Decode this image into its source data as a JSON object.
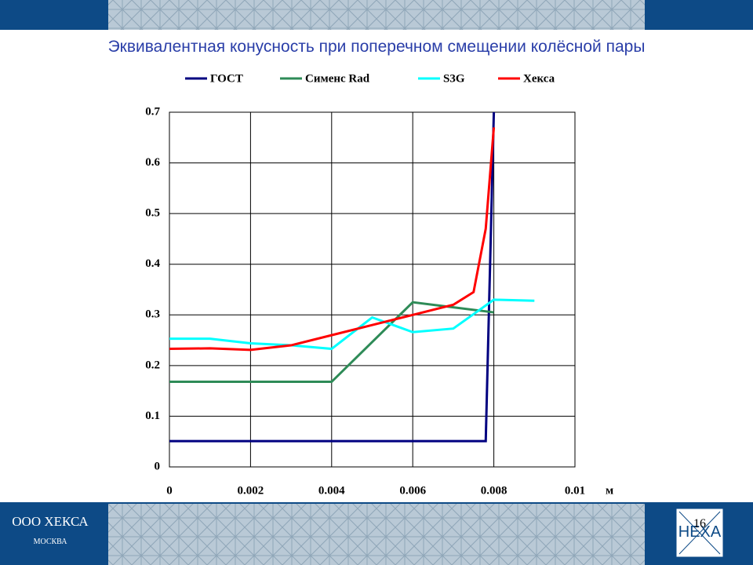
{
  "slide": {
    "company": "ООО ХЕКСА",
    "city": "МОСКВА",
    "logo": "HEXA",
    "page": "16"
  },
  "chart_data": {
    "type": "line",
    "title": "Эквивалентная конусность при поперечном смещении колёсной пары",
    "x_label": "м",
    "xlim": [
      0,
      0.01
    ],
    "xticks": [
      0,
      0.002,
      0.004,
      0.006,
      0.008,
      0.01
    ],
    "ylim": [
      0,
      0.7
    ],
    "yticks": [
      0,
      0.1,
      0.2,
      0.3,
      0.4,
      0.5,
      0.6,
      0.7
    ],
    "grid": true,
    "legend": "top",
    "series": [
      {
        "name": "ГОСТ",
        "color": "#000080",
        "x": [
          0,
          0.0078,
          0.008
        ],
        "values": [
          0.051,
          0.051,
          0.7
        ]
      },
      {
        "name": "Сименс Rad",
        "color": "#2e8b57",
        "x": [
          0,
          0.004,
          0.006,
          0.007,
          0.008
        ],
        "values": [
          0.168,
          0.168,
          0.325,
          0.315,
          0.305
        ]
      },
      {
        "name": "S3G",
        "color": "#00ffff",
        "x": [
          0,
          0.001,
          0.002,
          0.003,
          0.004,
          0.005,
          0.006,
          0.007,
          0.008,
          0.009
        ],
        "values": [
          0.253,
          0.253,
          0.244,
          0.24,
          0.233,
          0.295,
          0.266,
          0.273,
          0.33,
          0.328
        ]
      },
      {
        "name": "Хекса",
        "color": "#ff0000",
        "x": [
          0,
          0.001,
          0.002,
          0.003,
          0.004,
          0.005,
          0.006,
          0.007,
          0.0075,
          0.0078,
          0.008
        ],
        "values": [
          0.233,
          0.234,
          0.231,
          0.24,
          0.26,
          0.28,
          0.3,
          0.32,
          0.345,
          0.47,
          0.67
        ]
      }
    ]
  }
}
